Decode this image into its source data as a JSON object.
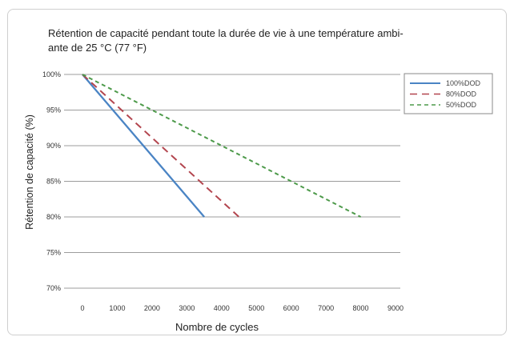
{
  "chart_data": {
    "type": "line",
    "title_lines": [
      "Rétention de capacité pendant toute la durée de vie à une température ambi-",
      "ante de 25 °C (77 °F)"
    ],
    "xlabel": "Nombre de cycles",
    "ylabel": "Rétention de capacité (%)",
    "xlim": [
      0,
      9000
    ],
    "ylim": [
      70,
      100
    ],
    "x_ticks": [
      0,
      1000,
      2000,
      3000,
      4000,
      5000,
      6000,
      7000,
      8000,
      9000
    ],
    "y_ticks": [
      100,
      95,
      90,
      85,
      80,
      75,
      70
    ],
    "y_tick_labels": [
      "100%",
      "95%",
      "90%",
      "85%",
      "80%",
      "75%",
      "70%"
    ],
    "grid": true,
    "legend_position": "right",
    "series": [
      {
        "name": "100%DOD",
        "color": "#4a84c4",
        "dashed": false,
        "x": [
          0,
          3500
        ],
        "y": [
          100,
          80
        ]
      },
      {
        "name": "80%DOD",
        "color": "#b3464f",
        "dashed": true,
        "x": [
          0,
          4500
        ],
        "y": [
          100,
          80
        ]
      },
      {
        "name": "50%DOD",
        "color": "#4d9a4a",
        "dashed": true,
        "x": [
          0,
          8000
        ],
        "y": [
          100,
          80
        ]
      }
    ]
  }
}
